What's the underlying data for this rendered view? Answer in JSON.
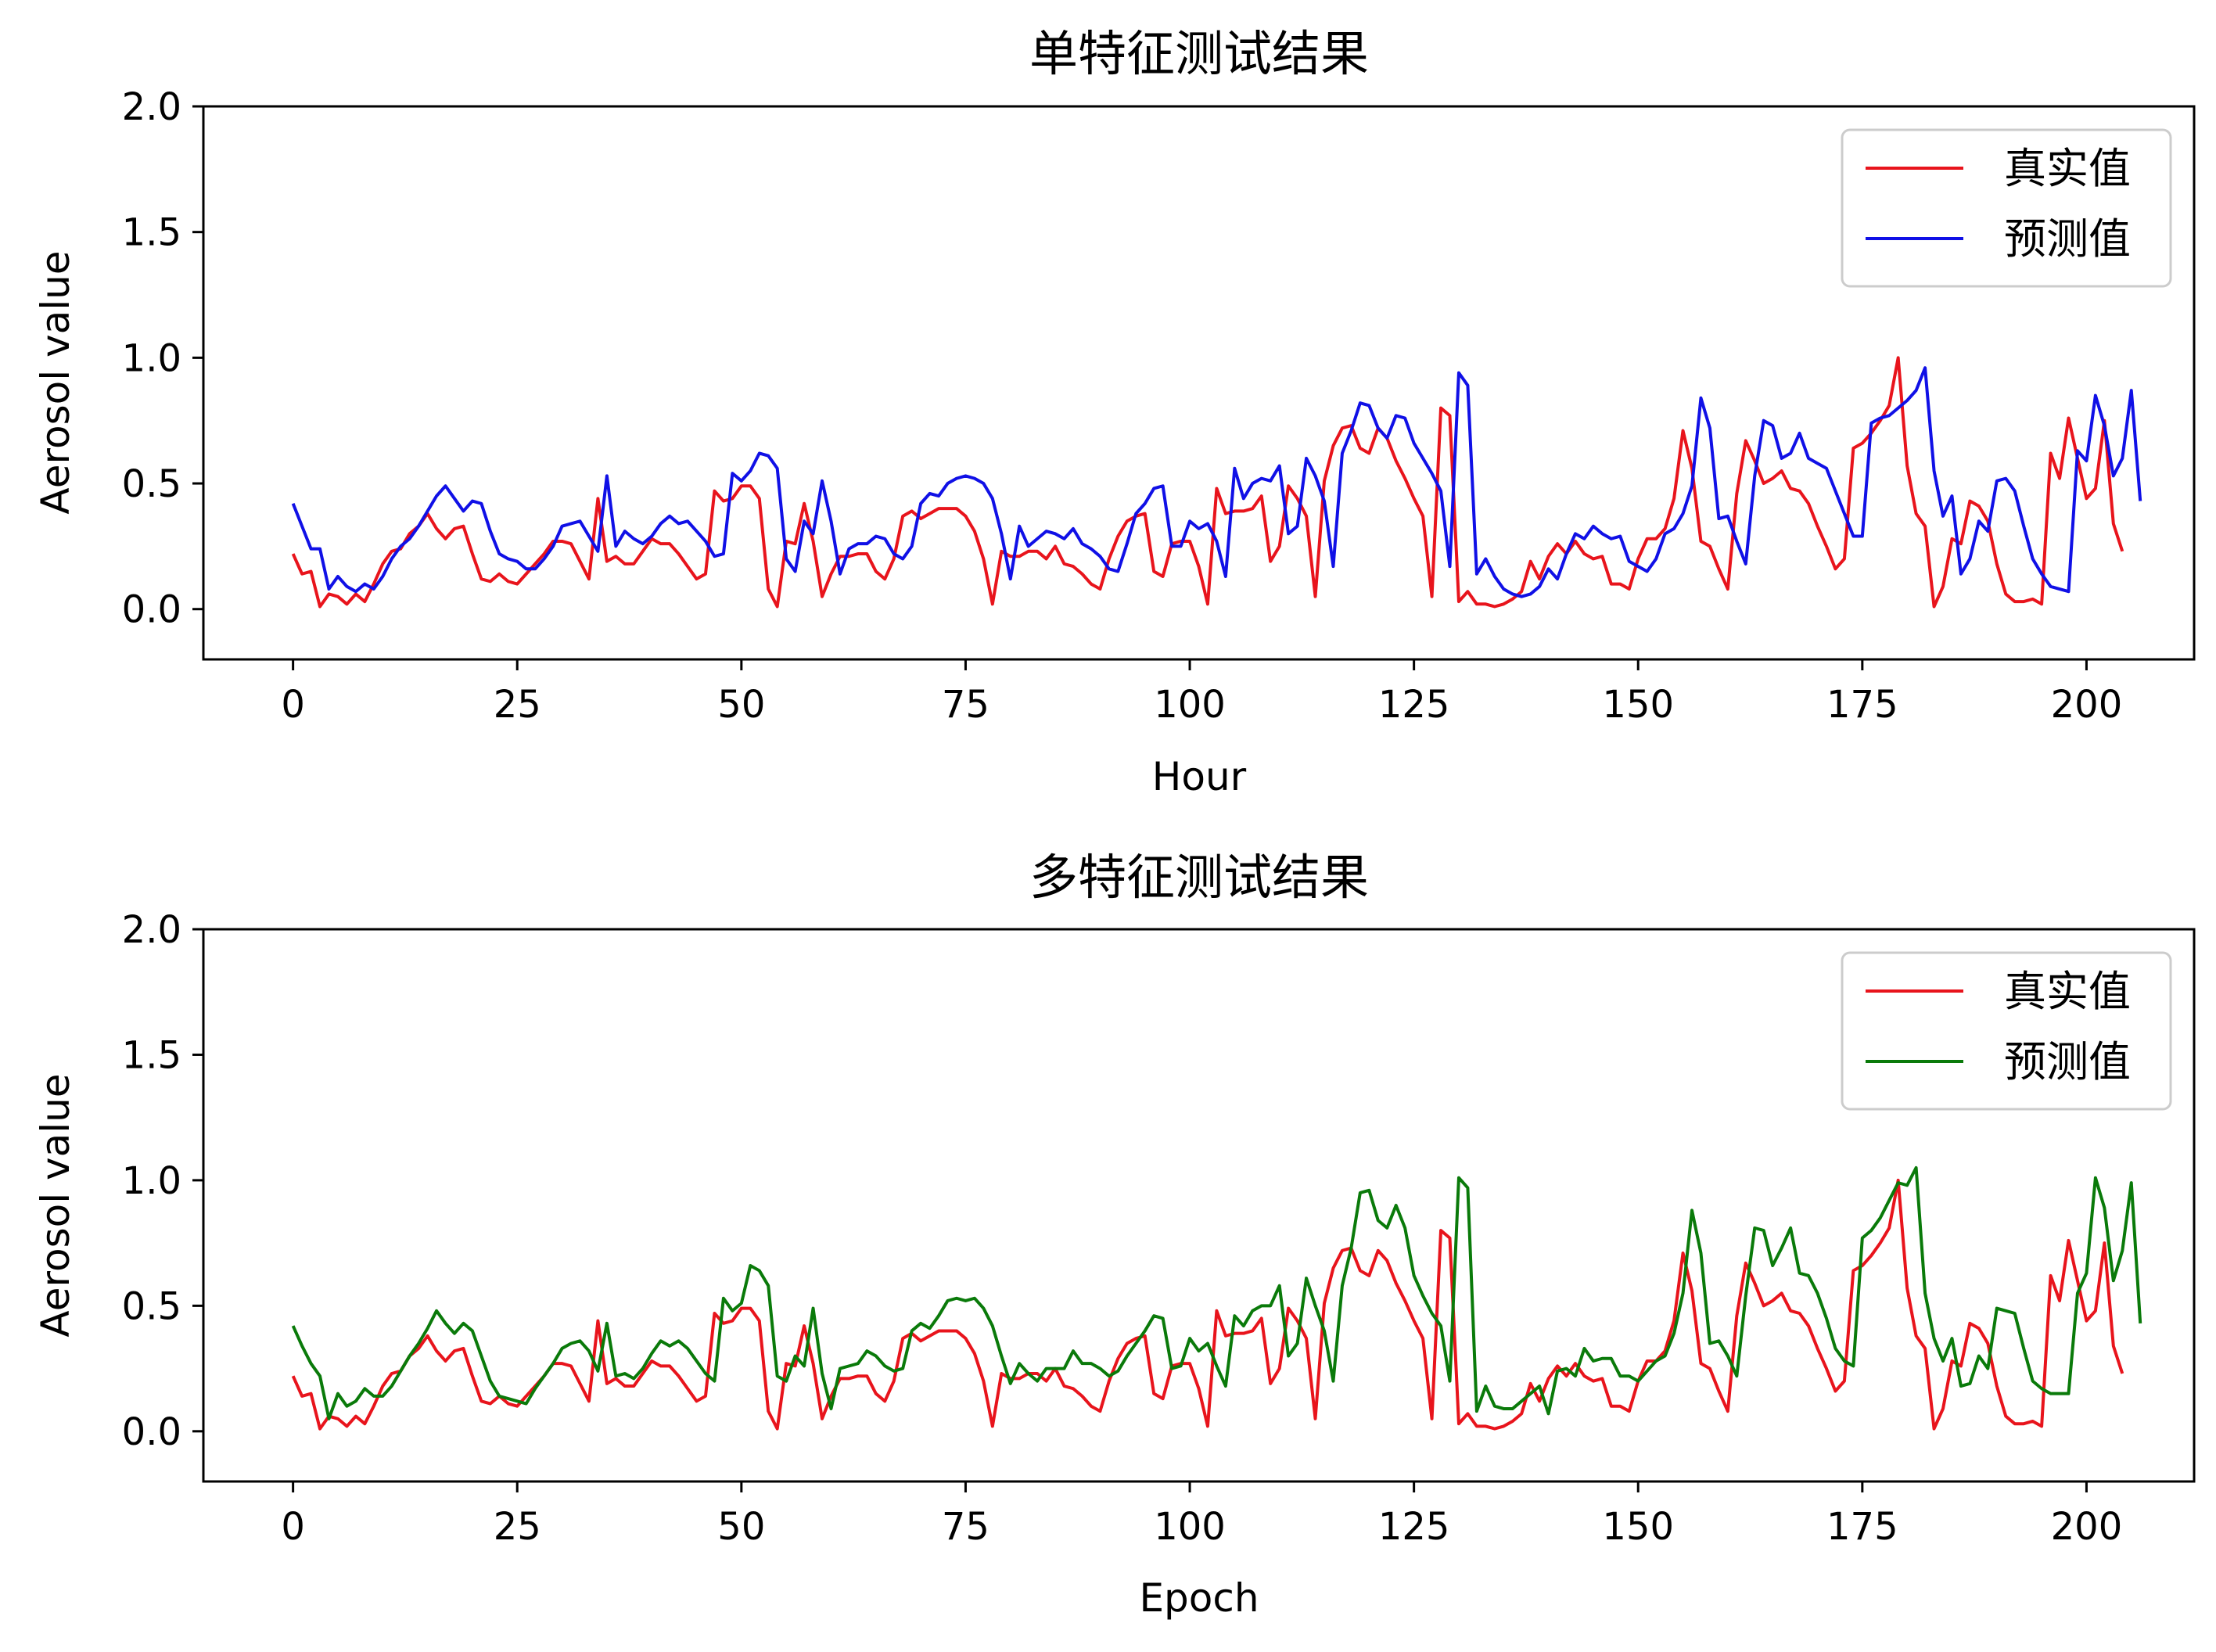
{
  "chart_data": [
    {
      "type": "line",
      "title": "单特征测试结果",
      "xlabel": "Hour",
      "ylabel": "Aerosol value",
      "xlim": [
        -10,
        212
      ],
      "ylim": [
        -0.2,
        2.0
      ],
      "xticks": [
        0,
        25,
        50,
        75,
        100,
        125,
        150,
        175,
        200
      ],
      "yticks": [
        0.0,
        0.5,
        1.0,
        1.5,
        2.0
      ],
      "grid": false,
      "legend_position": "upper right",
      "series": [
        {
          "name": "真实值",
          "color": "#e8141c",
          "values": [
            0.22,
            0.14,
            0.15,
            0.01,
            0.06,
            0.05,
            0.02,
            0.06,
            0.03,
            0.1,
            0.18,
            0.23,
            0.24,
            0.3,
            0.33,
            0.38,
            0.32,
            0.28,
            0.32,
            0.33,
            0.22,
            0.12,
            0.11,
            0.14,
            0.11,
            0.1,
            0.14,
            0.18,
            0.22,
            0.27,
            0.27,
            0.26,
            0.19,
            0.12,
            0.44,
            0.19,
            0.21,
            0.18,
            0.18,
            0.23,
            0.28,
            0.26,
            0.26,
            0.22,
            0.17,
            0.12,
            0.14,
            0.47,
            0.43,
            0.44,
            0.49,
            0.49,
            0.44,
            0.08,
            0.01,
            0.27,
            0.26,
            0.42,
            0.27,
            0.05,
            0.14,
            0.21,
            0.21,
            0.22,
            0.22,
            0.15,
            0.12,
            0.2,
            0.37,
            0.39,
            0.36,
            0.38,
            0.4,
            0.4,
            0.4,
            0.37,
            0.31,
            0.2,
            0.02,
            0.23,
            0.21,
            0.21,
            0.23,
            0.23,
            0.2,
            0.25,
            0.18,
            0.17,
            0.14,
            0.1,
            0.08,
            0.2,
            0.29,
            0.35,
            0.37,
            0.38,
            0.15,
            0.13,
            0.26,
            0.27,
            0.27,
            0.17,
            0.02,
            0.48,
            0.38,
            0.39,
            0.39,
            0.4,
            0.45,
            0.19,
            0.25,
            0.49,
            0.44,
            0.37,
            0.05,
            0.51,
            0.65,
            0.72,
            0.73,
            0.64,
            0.62,
            0.72,
            0.68,
            0.59,
            0.52,
            0.44,
            0.37,
            0.05,
            0.8,
            0.77,
            0.03,
            0.07,
            0.02,
            0.02,
            0.01,
            0.02,
            0.04,
            0.07,
            0.19,
            0.12,
            0.21,
            0.26,
            0.22,
            0.27,
            0.22,
            0.2,
            0.21,
            0.1,
            0.1,
            0.08,
            0.2,
            0.28,
            0.28,
            0.32,
            0.44,
            0.71,
            0.56,
            0.27,
            0.25,
            0.16,
            0.08,
            0.46,
            0.67,
            0.59,
            0.5,
            0.52,
            0.55,
            0.48,
            0.47,
            0.42,
            0.33,
            0.25,
            0.16,
            0.2,
            0.64,
            0.66,
            0.7,
            0.75,
            0.81,
            1.0,
            0.57,
            0.38,
            0.33,
            0.01,
            0.09,
            0.28,
            0.26,
            0.43,
            0.41,
            0.35,
            0.18,
            0.06,
            0.03,
            0.03,
            0.04,
            0.02,
            0.62,
            0.52,
            0.76,
            0.6,
            0.44,
            0.48,
            0.75,
            0.34,
            0.23
          ]
        },
        {
          "name": "预测值",
          "color": "#1010e6",
          "values": [
            0.42,
            0.33,
            0.24,
            0.24,
            0.08,
            0.13,
            0.09,
            0.07,
            0.1,
            0.08,
            0.13,
            0.2,
            0.25,
            0.28,
            0.33,
            0.39,
            0.45,
            0.49,
            0.44,
            0.39,
            0.43,
            0.42,
            0.31,
            0.22,
            0.2,
            0.19,
            0.16,
            0.16,
            0.2,
            0.25,
            0.33,
            0.34,
            0.35,
            0.29,
            0.23,
            0.53,
            0.25,
            0.31,
            0.28,
            0.26,
            0.29,
            0.34,
            0.37,
            0.34,
            0.35,
            0.31,
            0.27,
            0.21,
            0.22,
            0.54,
            0.51,
            0.55,
            0.62,
            0.61,
            0.56,
            0.2,
            0.15,
            0.35,
            0.3,
            0.51,
            0.35,
            0.14,
            0.24,
            0.26,
            0.26,
            0.29,
            0.28,
            0.22,
            0.2,
            0.25,
            0.42,
            0.46,
            0.45,
            0.5,
            0.52,
            0.53,
            0.52,
            0.5,
            0.44,
            0.3,
            0.12,
            0.33,
            0.25,
            0.28,
            0.31,
            0.3,
            0.28,
            0.32,
            0.26,
            0.24,
            0.21,
            0.16,
            0.15,
            0.26,
            0.38,
            0.42,
            0.48,
            0.49,
            0.25,
            0.25,
            0.35,
            0.32,
            0.34,
            0.27,
            0.13,
            0.56,
            0.44,
            0.5,
            0.52,
            0.51,
            0.57,
            0.3,
            0.33,
            0.6,
            0.53,
            0.43,
            0.17,
            0.62,
            0.71,
            0.82,
            0.81,
            0.72,
            0.68,
            0.77,
            0.76,
            0.66,
            0.6,
            0.54,
            0.47,
            0.17,
            0.94,
            0.89,
            0.14,
            0.2,
            0.13,
            0.08,
            0.06,
            0.05,
            0.06,
            0.09,
            0.16,
            0.12,
            0.22,
            0.3,
            0.28,
            0.33,
            0.3,
            0.28,
            0.29,
            0.19,
            0.17,
            0.15,
            0.2,
            0.3,
            0.32,
            0.38,
            0.49,
            0.84,
            0.72,
            0.36,
            0.37,
            0.27,
            0.18,
            0.53,
            0.75,
            0.73,
            0.6,
            0.62,
            0.7,
            0.6,
            0.58,
            0.56,
            0.47,
            0.38,
            0.29,
            0.29,
            0.74,
            0.76,
            0.77,
            0.8,
            0.83,
            0.87,
            0.96,
            0.55,
            0.37,
            0.45,
            0.14,
            0.2,
            0.35,
            0.31,
            0.51,
            0.52,
            0.47,
            0.33,
            0.2,
            0.14,
            0.09,
            0.08,
            0.07,
            0.63,
            0.59,
            0.85,
            0.73,
            0.53,
            0.6,
            0.87,
            0.43
          ]
        }
      ]
    },
    {
      "type": "line",
      "title": "多特征测试结果",
      "xlabel": "Epoch",
      "ylabel": "Aerosol value",
      "xlim": [
        -10,
        212
      ],
      "ylim": [
        -0.2,
        2.0
      ],
      "xticks": [
        0,
        25,
        50,
        75,
        100,
        125,
        150,
        175,
        200
      ],
      "yticks": [
        0.0,
        0.5,
        1.0,
        1.5,
        2.0
      ],
      "grid": false,
      "legend_position": "upper right",
      "series": [
        {
          "name": "真实值",
          "color": "#e8141c",
          "values": [
            0.22,
            0.14,
            0.15,
            0.01,
            0.06,
            0.05,
            0.02,
            0.06,
            0.03,
            0.1,
            0.18,
            0.23,
            0.24,
            0.3,
            0.33,
            0.38,
            0.32,
            0.28,
            0.32,
            0.33,
            0.22,
            0.12,
            0.11,
            0.14,
            0.11,
            0.1,
            0.14,
            0.18,
            0.22,
            0.27,
            0.27,
            0.26,
            0.19,
            0.12,
            0.44,
            0.19,
            0.21,
            0.18,
            0.18,
            0.23,
            0.28,
            0.26,
            0.26,
            0.22,
            0.17,
            0.12,
            0.14,
            0.47,
            0.43,
            0.44,
            0.49,
            0.49,
            0.44,
            0.08,
            0.01,
            0.27,
            0.26,
            0.42,
            0.27,
            0.05,
            0.14,
            0.21,
            0.21,
            0.22,
            0.22,
            0.15,
            0.12,
            0.2,
            0.37,
            0.39,
            0.36,
            0.38,
            0.4,
            0.4,
            0.4,
            0.37,
            0.31,
            0.2,
            0.02,
            0.23,
            0.21,
            0.21,
            0.23,
            0.23,
            0.2,
            0.25,
            0.18,
            0.17,
            0.14,
            0.1,
            0.08,
            0.2,
            0.29,
            0.35,
            0.37,
            0.38,
            0.15,
            0.13,
            0.26,
            0.27,
            0.27,
            0.17,
            0.02,
            0.48,
            0.38,
            0.39,
            0.39,
            0.4,
            0.45,
            0.19,
            0.25,
            0.49,
            0.44,
            0.37,
            0.05,
            0.51,
            0.65,
            0.72,
            0.73,
            0.64,
            0.62,
            0.72,
            0.68,
            0.59,
            0.52,
            0.44,
            0.37,
            0.05,
            0.8,
            0.77,
            0.03,
            0.07,
            0.02,
            0.02,
            0.01,
            0.02,
            0.04,
            0.07,
            0.19,
            0.12,
            0.21,
            0.26,
            0.22,
            0.27,
            0.22,
            0.2,
            0.21,
            0.1,
            0.1,
            0.08,
            0.2,
            0.28,
            0.28,
            0.32,
            0.44,
            0.71,
            0.56,
            0.27,
            0.25,
            0.16,
            0.08,
            0.46,
            0.67,
            0.59,
            0.5,
            0.52,
            0.55,
            0.48,
            0.47,
            0.42,
            0.33,
            0.25,
            0.16,
            0.2,
            0.64,
            0.66,
            0.7,
            0.75,
            0.81,
            1.0,
            0.57,
            0.38,
            0.33,
            0.01,
            0.09,
            0.28,
            0.26,
            0.43,
            0.41,
            0.35,
            0.18,
            0.06,
            0.03,
            0.03,
            0.04,
            0.02,
            0.62,
            0.52,
            0.76,
            0.6,
            0.44,
            0.48,
            0.75,
            0.34,
            0.23
          ]
        },
        {
          "name": "预测值",
          "color": "#0a7a0a",
          "values": [
            0.42,
            0.34,
            0.27,
            0.22,
            0.05,
            0.15,
            0.1,
            0.12,
            0.17,
            0.14,
            0.14,
            0.18,
            0.24,
            0.3,
            0.35,
            0.41,
            0.48,
            0.43,
            0.39,
            0.43,
            0.4,
            0.3,
            0.2,
            0.14,
            0.13,
            0.12,
            0.11,
            0.17,
            0.22,
            0.27,
            0.33,
            0.35,
            0.36,
            0.32,
            0.24,
            0.43,
            0.22,
            0.23,
            0.21,
            0.25,
            0.31,
            0.36,
            0.34,
            0.36,
            0.33,
            0.28,
            0.23,
            0.2,
            0.53,
            0.48,
            0.51,
            0.66,
            0.64,
            0.58,
            0.22,
            0.2,
            0.3,
            0.26,
            0.49,
            0.23,
            0.09,
            0.25,
            0.26,
            0.27,
            0.32,
            0.3,
            0.26,
            0.24,
            0.25,
            0.4,
            0.43,
            0.41,
            0.46,
            0.52,
            0.53,
            0.52,
            0.53,
            0.49,
            0.42,
            0.3,
            0.19,
            0.27,
            0.23,
            0.2,
            0.25,
            0.25,
            0.25,
            0.32,
            0.27,
            0.27,
            0.25,
            0.22,
            0.24,
            0.3,
            0.35,
            0.4,
            0.46,
            0.45,
            0.25,
            0.26,
            0.37,
            0.32,
            0.35,
            0.26,
            0.18,
            0.46,
            0.42,
            0.48,
            0.5,
            0.5,
            0.58,
            0.3,
            0.35,
            0.61,
            0.5,
            0.4,
            0.2,
            0.58,
            0.73,
            0.95,
            0.96,
            0.84,
            0.81,
            0.9,
            0.81,
            0.62,
            0.54,
            0.47,
            0.42,
            0.2,
            1.01,
            0.97,
            0.08,
            0.18,
            0.1,
            0.09,
            0.09,
            0.12,
            0.15,
            0.18,
            0.07,
            0.24,
            0.25,
            0.22,
            0.33,
            0.28,
            0.29,
            0.29,
            0.22,
            0.22,
            0.2,
            0.24,
            0.28,
            0.3,
            0.39,
            0.55,
            0.88,
            0.71,
            0.35,
            0.36,
            0.3,
            0.22,
            0.54,
            0.81,
            0.8,
            0.66,
            0.73,
            0.81,
            0.63,
            0.62,
            0.55,
            0.45,
            0.33,
            0.28,
            0.26,
            0.77,
            0.8,
            0.85,
            0.92,
            0.99,
            0.98,
            1.05,
            0.55,
            0.37,
            0.28,
            0.37,
            0.18,
            0.19,
            0.3,
            0.25,
            0.49,
            0.48,
            0.47,
            0.33,
            0.2,
            0.17,
            0.15,
            0.15,
            0.15,
            0.55,
            0.63,
            1.01,
            0.89,
            0.6,
            0.72,
            0.99,
            0.43
          ]
        }
      ]
    }
  ]
}
